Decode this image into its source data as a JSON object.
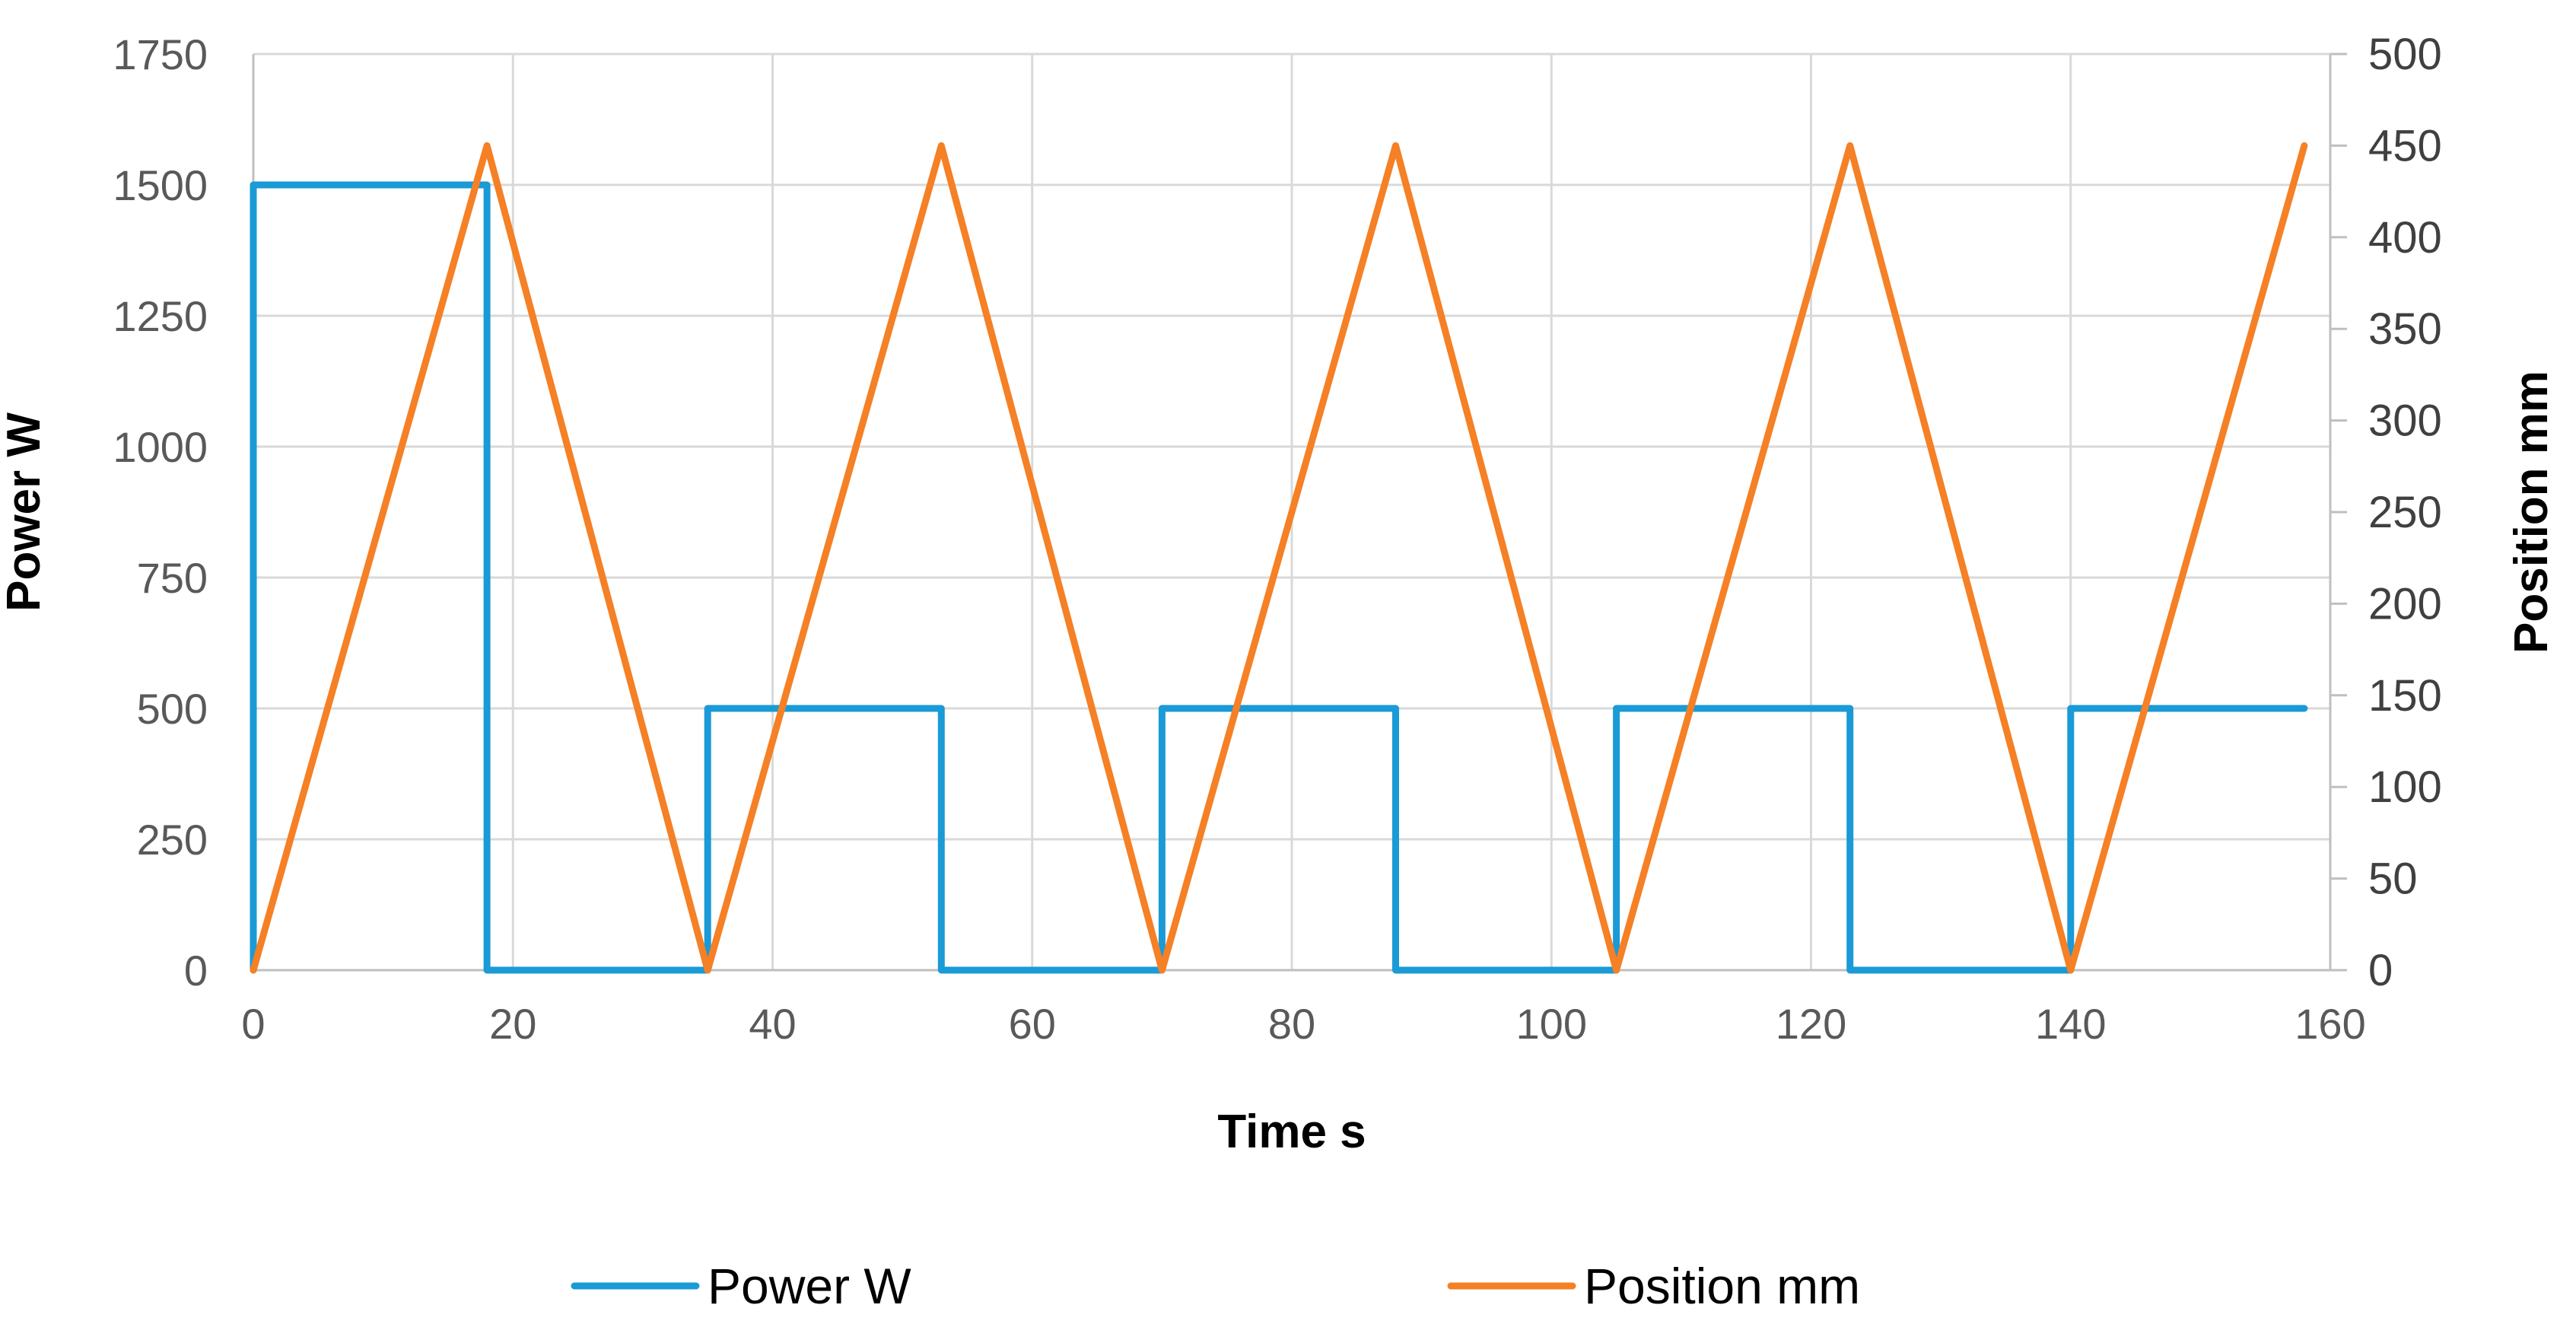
{
  "chart_data": {
    "type": "line",
    "xlabel": "Time s",
    "ylabel": "Power W",
    "y2label": "Position mm",
    "xlim": [
      0,
      160
    ],
    "ylim": [
      0,
      1750
    ],
    "y2lim": [
      0,
      500
    ],
    "xticks": [
      0,
      20,
      40,
      60,
      80,
      100,
      120,
      140,
      160
    ],
    "yticks": [
      0,
      250,
      500,
      750,
      1000,
      1250,
      1500,
      1750
    ],
    "y2ticks": [
      0,
      50,
      100,
      150,
      200,
      250,
      300,
      350,
      400,
      450,
      500
    ],
    "grid": true,
    "legend_position": "bottom",
    "series": [
      {
        "name": "Power W",
        "axis": "left",
        "color": "#1a9ad6",
        "x": [
          0,
          0,
          18,
          18,
          35,
          35,
          53,
          53,
          70,
          70,
          88,
          88,
          105,
          105,
          123,
          123,
          140,
          140,
          158
        ],
        "y": [
          0,
          1500,
          1500,
          0,
          0,
          500,
          500,
          0,
          0,
          500,
          500,
          0,
          0,
          500,
          500,
          0,
          0,
          500,
          500
        ]
      },
      {
        "name": "Position mm",
        "axis": "right",
        "color": "#f58025",
        "x": [
          0,
          18,
          35,
          53,
          70,
          88,
          105,
          123,
          140,
          158
        ],
        "y": [
          0,
          450,
          0,
          450,
          0,
          450,
          0,
          450,
          0,
          450
        ]
      }
    ]
  }
}
